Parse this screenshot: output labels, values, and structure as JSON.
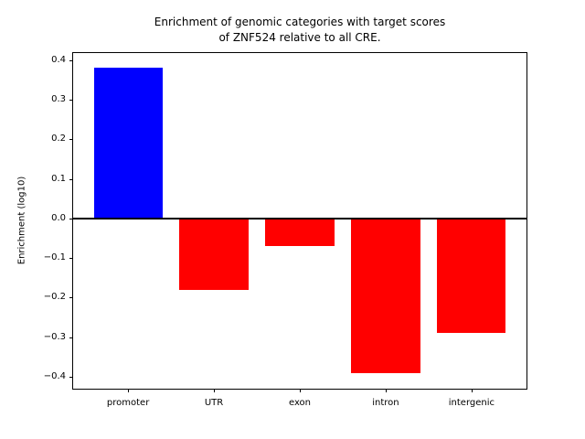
{
  "chart_data": {
    "type": "bar",
    "title_line1": "Enrichment of genomic categories with target scores",
    "title_line2": "of ZNF524 relative to all CRE.",
    "ylabel": "Enrichment (log10)",
    "xlabel": "",
    "categories": [
      "promoter",
      "UTR",
      "exon",
      "intron",
      "intergenic"
    ],
    "values": [
      0.38,
      -0.18,
      -0.07,
      -0.39,
      -0.29
    ],
    "bar_colors": [
      "#0000ff",
      "#ff0000",
      "#ff0000",
      "#ff0000",
      "#ff0000"
    ],
    "bar_width": 0.8,
    "xlim": [
      -0.64,
      4.64
    ],
    "ylim": [
      -0.43,
      0.418
    ],
    "yticks": [
      {
        "value": 0.4,
        "label": "0.4"
      },
      {
        "value": 0.3,
        "label": "0.3"
      },
      {
        "value": 0.2,
        "label": "0.2"
      },
      {
        "value": 0.1,
        "label": "0.1"
      },
      {
        "value": 0.0,
        "label": "0.0"
      },
      {
        "value": -0.1,
        "label": "−0.1"
      },
      {
        "value": -0.2,
        "label": "−0.2"
      },
      {
        "value": -0.3,
        "label": "−0.3"
      },
      {
        "value": -0.4,
        "label": "−0.4"
      }
    ],
    "zero_line": true,
    "grid": false,
    "legend": null,
    "axis_color": "#000000",
    "background_color": "#ffffff"
  }
}
